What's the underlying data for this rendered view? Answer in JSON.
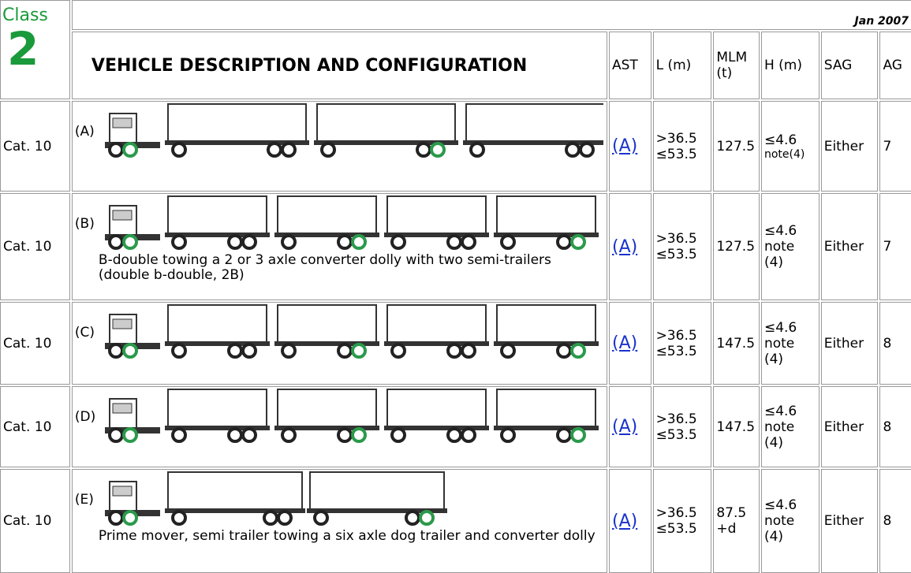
{
  "header": {
    "class_label": "Class",
    "class_number": "2",
    "date": "Jan 2007",
    "title": "VEHICLE DESCRIPTION AND CONFIGURATION",
    "columns": [
      "AST",
      "L (m)",
      "MLM (t)",
      "H (m)",
      "SAG",
      "AG"
    ]
  },
  "table": {
    "rows": [
      {
        "category": "Cat. 10",
        "label": "(A)",
        "ast": "(A)",
        "l_min": ">36.5",
        "l_max": "≤53.5",
        "mlm": "127.5",
        "h": "≤4.6",
        "h_note": "note(4)",
        "sag": "Either",
        "ag": "7"
      },
      {
        "category": "Cat. 10",
        "label": "(B)",
        "description": "B-double towing a 2 or 3 axle converter dolly with two semi-trailers (double b-double, 2B)",
        "ast": "(A)",
        "l_min": ">36.5",
        "l_max": "≤53.5",
        "mlm": "127.5",
        "h": "≤4.6",
        "h_note": "note (4)",
        "sag": "Either",
        "ag": "7"
      },
      {
        "category": "Cat. 10",
        "label": "(C)",
        "ast": "(A)",
        "l_min": ">36.5",
        "l_max": "≤53.5",
        "mlm": "147.5",
        "h": "≤4.6",
        "h_note": "note (4)",
        "sag": "Either",
        "ag": "8"
      },
      {
        "category": "Cat. 10",
        "label": "(D)",
        "ast": "(A)",
        "l_min": ">36.5",
        "l_max": "≤53.5",
        "mlm": "147.5",
        "h": "≤4.6",
        "h_note": "note (4)",
        "sag": "Either",
        "ag": "8"
      },
      {
        "category": "Cat. 10",
        "label": "(E)",
        "description": "Prime mover, semi trailer towing a six axle dog trailer and converter dolly",
        "ast": "(A)",
        "l_min": ">36.5",
        "l_max": "≤53.5",
        "mlm": "87.5 +d",
        "h": "≤4.6",
        "h_note": "note (4)",
        "sag": "Either",
        "ag": "8"
      }
    ]
  }
}
